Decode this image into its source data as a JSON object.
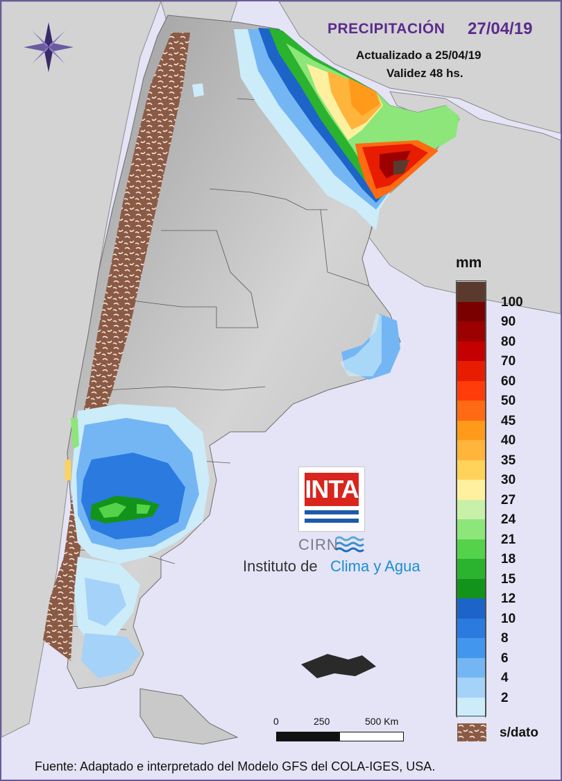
{
  "header": {
    "title": "PRECIPITACIÓN",
    "date": "27/04/19",
    "updated": "Actualizado a 25/04/19",
    "validity": "Validez 48 hs."
  },
  "legend": {
    "unit": "mm",
    "classes": [
      {
        "label": "",
        "color": "#5b3a2e"
      },
      {
        "label": "100",
        "color": "#7a0000"
      },
      {
        "label": "90",
        "color": "#9c0000"
      },
      {
        "label": "80",
        "color": "#c40000"
      },
      {
        "label": "70",
        "color": "#e81c00"
      },
      {
        "label": "60",
        "color": "#ff3c0a"
      },
      {
        "label": "50",
        "color": "#ff6a12"
      },
      {
        "label": "45",
        "color": "#ff9a1a"
      },
      {
        "label": "40",
        "color": "#ffb43c"
      },
      {
        "label": "35",
        "color": "#ffd25a"
      },
      {
        "label": "30",
        "color": "#fff0a0"
      },
      {
        "label": "27",
        "color": "#c8f0a8"
      },
      {
        "label": "24",
        "color": "#8ce67a"
      },
      {
        "label": "21",
        "color": "#54d24a"
      },
      {
        "label": "18",
        "color": "#2bb22e"
      },
      {
        "label": "15",
        "color": "#12941a"
      },
      {
        "label": "12",
        "color": "#1c64c8"
      },
      {
        "label": "10",
        "color": "#2a7ae0"
      },
      {
        "label": "8",
        "color": "#4296ee"
      },
      {
        "label": "6",
        "color": "#74b6f4"
      },
      {
        "label": "4",
        "color": "#a4d2f8"
      },
      {
        "label": "2",
        "color": "#ccecfa"
      }
    ],
    "no_data_label": "s/dato",
    "no_data_color": "#8b5a45"
  },
  "scale_bar": {
    "labels": [
      "0",
      "250",
      "500 Km"
    ]
  },
  "logo": {
    "inta": "INTA",
    "cirn": "CIRN",
    "institute_a": "Instituto de",
    "institute_b": "Clima y Agua"
  },
  "footer": {
    "source": "Fuente: Adaptado e interpretado del Modelo GFS del COLA-IGES, USA."
  },
  "colors": {
    "background": "#e4e4f6",
    "land": "#c8c8c8",
    "title": "#5b2b8e",
    "sea": "#e4e4f6"
  }
}
